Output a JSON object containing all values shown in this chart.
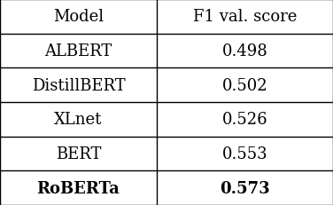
{
  "headers": [
    "Model",
    "F1 val. score"
  ],
  "rows": [
    [
      "ALBERT",
      "0.498"
    ],
    [
      "DistillBERT",
      "0.502"
    ],
    [
      "XLnet",
      "0.526"
    ],
    [
      "BERT",
      "0.553"
    ],
    [
      "RoBERTa",
      "0.573"
    ]
  ],
  "bold_last_row": true,
  "col_split": 0.47,
  "header_fontsize": 13,
  "cell_fontsize": 13,
  "background_color": "#ffffff",
  "line_color": "#000000",
  "text_color": "#000000",
  "line_width": 1.0
}
